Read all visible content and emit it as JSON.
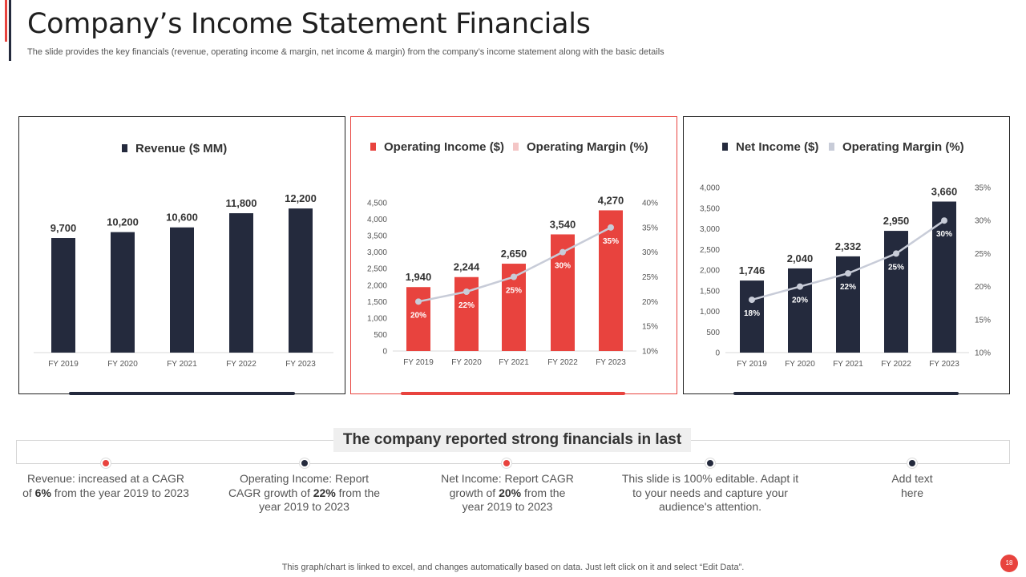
{
  "header": {
    "title": "Company’s Income Statement Financials",
    "subtitle": "The slide provides the key financials (revenue, operating income & margin, net income & margin) from the company’s income statement along with the basic details"
  },
  "colors": {
    "navy": "#242a3d",
    "red": "#e8433e",
    "line": "#c8ccd8",
    "pink": "#f4c6c6"
  },
  "chart_data": [
    {
      "type": "bar",
      "legend": [
        "Revenue ($ MM)"
      ],
      "categories": [
        "FY 2019",
        "FY 2020",
        "FY 2021",
        "FY 2022",
        "FY 2023"
      ],
      "series": [
        {
          "name": "Revenue ($ MM)",
          "values": [
            9700,
            10200,
            10600,
            11800,
            12200
          ],
          "labels": [
            "9,700",
            "10,200",
            "10,600",
            "11,800",
            "12,200"
          ]
        }
      ],
      "ylim": [
        0,
        13500
      ]
    },
    {
      "type": "bar",
      "legend": [
        "Operating Income ($)",
        "Operating Margin (%)"
      ],
      "categories": [
        "FY 2019",
        "FY 2020",
        "FY 2021",
        "FY 2022",
        "FY 2023"
      ],
      "series": [
        {
          "name": "Operating Income ($)",
          "values": [
            1940,
            2244,
            2650,
            3540,
            4270
          ],
          "labels": [
            "1,940",
            "2,244",
            "2,650",
            "3,540",
            "4,270"
          ]
        },
        {
          "name": "Operating Margin (%)",
          "values": [
            20,
            22,
            25,
            30,
            35
          ],
          "labels": [
            "20%",
            "22%",
            "25%",
            "30%",
            "35%"
          ]
        }
      ],
      "ylim": [
        0,
        4500
      ],
      "y_ticks": [
        "0",
        "500",
        "1,000",
        "1,500",
        "2,000",
        "2,500",
        "3,000",
        "3,500",
        "4,000",
        "4,500"
      ],
      "y2lim": [
        10,
        40
      ],
      "y2_ticks": [
        "10%",
        "15%",
        "20%",
        "25%",
        "30%",
        "35%",
        "40%"
      ]
    },
    {
      "type": "bar",
      "legend": [
        "Net Income ($)",
        "Operating Margin (%)"
      ],
      "categories": [
        "FY 2019",
        "FY 2020",
        "FY 2021",
        "FY 2022",
        "FY 2023"
      ],
      "series": [
        {
          "name": "Net Income ($)",
          "values": [
            1746,
            2040,
            2332,
            2950,
            3660
          ],
          "labels": [
            "1,746",
            "2,040",
            "2,332",
            "2,950",
            "3,660"
          ]
        },
        {
          "name": "Operating Margin (%)",
          "values": [
            18,
            20,
            22,
            25,
            30
          ],
          "labels": [
            "18%",
            "20%",
            "22%",
            "25%",
            "30%"
          ]
        }
      ],
      "ylim": [
        0,
        4000
      ],
      "y_ticks": [
        "0",
        "500",
        "1,000",
        "1,500",
        "2,000",
        "2,500",
        "3,000",
        "3,500",
        "4,000"
      ],
      "y2lim": [
        10,
        35
      ],
      "y2_ticks": [
        "10%",
        "15%",
        "20%",
        "25%",
        "30%",
        "35%"
      ]
    }
  ],
  "summary": {
    "label": "The company reported strong financials in last",
    "points": [
      {
        "pre": "Revenue: increased at a CAGR of ",
        "bold": "6%",
        "post": " from the year 2019 to 2023",
        "color": "red"
      },
      {
        "pre": "Operating Income: Report CAGR growth of ",
        "bold": "22%",
        "post": " from the year 2019 to 2023",
        "color": "navy"
      },
      {
        "pre": "Net Income: Report CAGR growth of ",
        "bold": "20%",
        "post": " from the year 2019 to 2023",
        "color": "red"
      },
      {
        "pre": "This slide is 100% editable. Adapt it to your needs and capture your audience's attention.",
        "bold": "",
        "post": "",
        "color": "navy"
      },
      {
        "pre": "Add text here",
        "bold": "",
        "post": "",
        "color": "navy"
      }
    ]
  },
  "footer": {
    "note": "This graph/chart is linked to excel,  and changes automatically based on data. Just left click on it and select “Edit Data”.",
    "page": "18"
  }
}
